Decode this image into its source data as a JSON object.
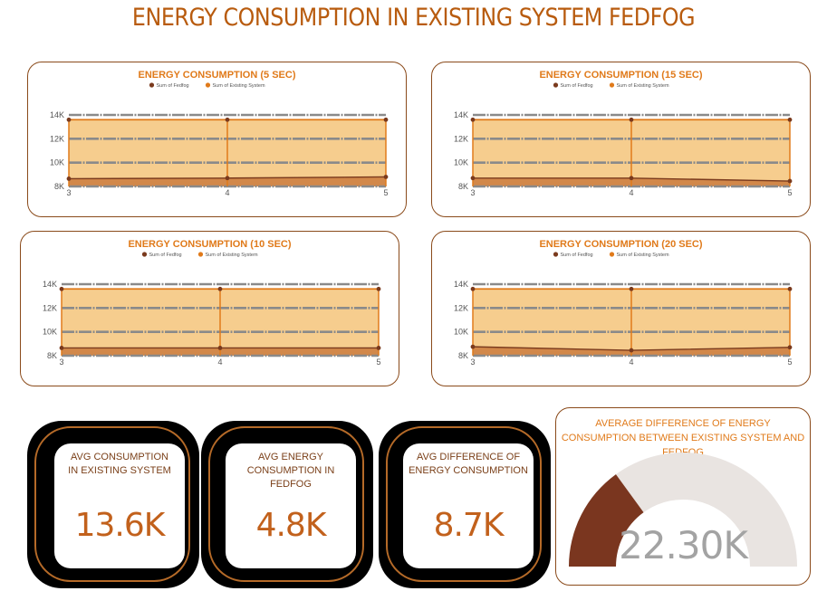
{
  "page_title": "ENERGY CONSUMPTION IN EXISTING SYSTEM FEDFOG",
  "colors": {
    "fedfog": "#7a3a1d",
    "existing": "#e07a1a",
    "area_fill": "#f6cd8e",
    "band_fill": "#d2884a",
    "title": "#e07a1a"
  },
  "chart_data": [
    {
      "type": "area",
      "title": "ENERGY CONSUMPTION (5 SEC)",
      "legend": [
        "Sum of Fedfog",
        "Sum of Existing System"
      ],
      "x": [
        3,
        4,
        5
      ],
      "x_tick_labels": [
        "3",
        "4",
        "5"
      ],
      "y_tick_labels": [
        "8K",
        "10K",
        "12K",
        "14K"
      ],
      "ylim": [
        8000,
        14000
      ],
      "series": [
        {
          "name": "Sum of Fedfog",
          "values": [
            8650,
            8700,
            8800
          ]
        },
        {
          "name": "Sum of Existing System",
          "values": [
            13600,
            13600,
            13600
          ]
        }
      ]
    },
    {
      "type": "area",
      "title": "ENERGY CONSUMPTION (15 SEC)",
      "legend": [
        "Sum of Fedfog",
        "Sum of Existing System"
      ],
      "x": [
        3,
        4,
        5
      ],
      "x_tick_labels": [
        "3",
        "4",
        "5"
      ],
      "y_tick_labels": [
        "8K",
        "10K",
        "12K",
        "14K"
      ],
      "ylim": [
        8000,
        14000
      ],
      "series": [
        {
          "name": "Sum of Fedfog",
          "values": [
            8700,
            8700,
            8450
          ]
        },
        {
          "name": "Sum of Existing System",
          "values": [
            13600,
            13600,
            13600
          ]
        }
      ]
    },
    {
      "type": "area",
      "title": "ENERGY CONSUMPTION (10 SEC)",
      "legend": [
        "Sum of Fedfog",
        "Sum of Existing System"
      ],
      "x": [
        3,
        4,
        5
      ],
      "x_tick_labels": [
        "3",
        "4",
        "5"
      ],
      "y_tick_labels": [
        "8K",
        "10K",
        "12K",
        "14K"
      ],
      "ylim": [
        8000,
        14000
      ],
      "series": [
        {
          "name": "Sum of Fedfog",
          "values": [
            8650,
            8650,
            8650
          ]
        },
        {
          "name": "Sum of Existing System",
          "values": [
            13600,
            13600,
            13600
          ]
        }
      ]
    },
    {
      "type": "area",
      "title": "ENERGY CONSUMPTION (20 SEC)",
      "legend": [
        "Sum of Fedfog",
        "Sum of Existing System"
      ],
      "x": [
        3,
        4,
        5
      ],
      "x_tick_labels": [
        "3",
        "4",
        "5"
      ],
      "y_tick_labels": [
        "8K",
        "10K",
        "12K",
        "14K"
      ],
      "ylim": [
        8000,
        14000
      ],
      "series": [
        {
          "name": "Sum of Fedfog",
          "values": [
            8750,
            8450,
            8700
          ]
        },
        {
          "name": "Sum of Existing System",
          "values": [
            13600,
            13600,
            13600
          ]
        }
      ]
    }
  ],
  "kpis": [
    {
      "label": "AVG CONSUMPTION IN EXISTING SYSTEM",
      "value": "13.6K"
    },
    {
      "label": "AVG ENERGY CONSUMPTION IN FEDFOG",
      "value": "4.8K"
    },
    {
      "label": "AVG DIFFERENCE OF ENERGY CONSUMPTION",
      "value": "8.7K"
    }
  ],
  "gauge": {
    "title": "AVERAGE DIFFERENCE OF ENERGY CONSUMPTION BETWEEN EXISTING SYSTEM AND FEDFOG",
    "value_label": "22.30K",
    "fill_fraction": 0.3
  }
}
